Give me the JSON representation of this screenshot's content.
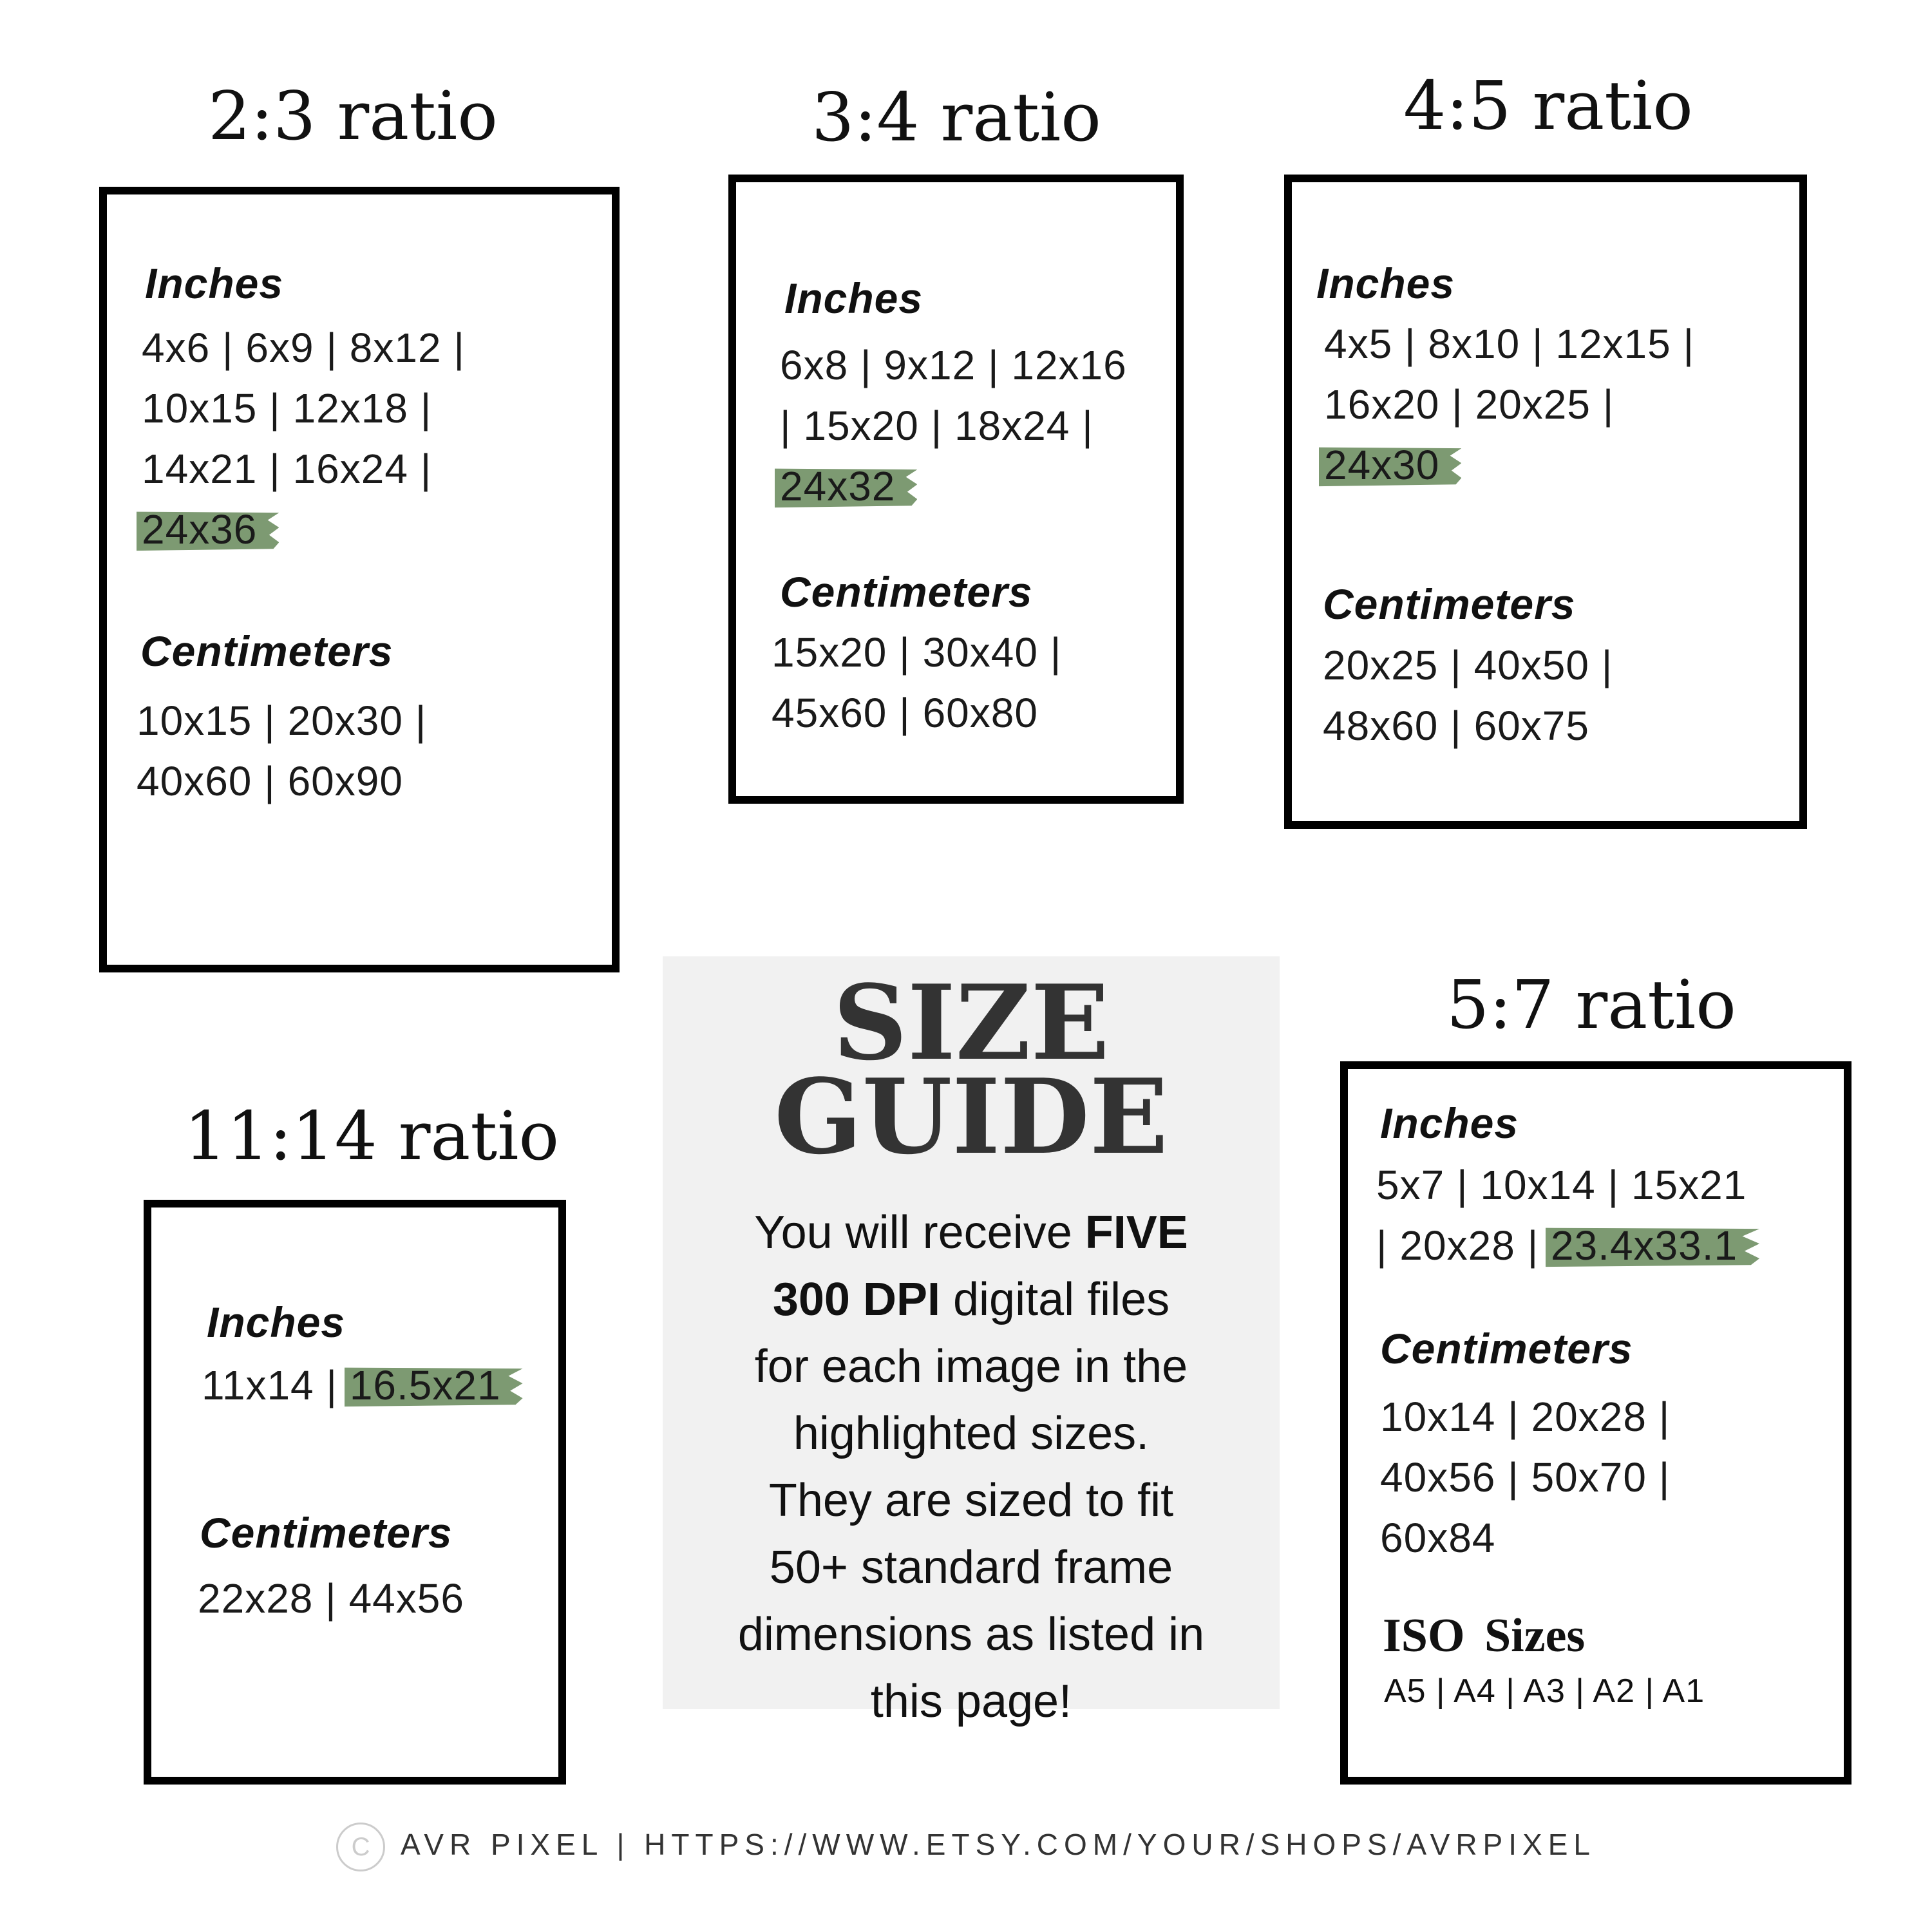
{
  "colors": {
    "highlight": "#7d9a72",
    "border": "#000000",
    "paper": "#f1f1f1"
  },
  "ratios": [
    {
      "id": "2-3",
      "title": "2:3 ratio",
      "inches_label": "Inches",
      "inches": [
        {
          "text": "4x6 | 6x9 | 8x12 |"
        },
        {
          "text": "10x15 | 12x18 |"
        },
        {
          "text": "14x21 | 16x24 |"
        },
        {
          "text": "",
          "highlight": "24x36"
        }
      ],
      "cm_label": "Centimeters",
      "cm": [
        "10x15 | 20x30 |",
        "40x60 | 60x90"
      ]
    },
    {
      "id": "3-4",
      "title": "3:4 ratio",
      "inches_label": "Inches",
      "inches": [
        {
          "text": "6x8 | 9x12 | 12x16"
        },
        {
          "text": "| 15x20 | 18x24 |"
        },
        {
          "text": "",
          "highlight": "24x32"
        }
      ],
      "cm_label": "Centimeters",
      "cm": [
        "15x20 |  30x40 |",
        "45x60 | 60x80"
      ]
    },
    {
      "id": "4-5",
      "title": "4:5 ratio",
      "inches_label": "Inches",
      "inches": [
        {
          "text": "4x5  |  8x10 | 12x15 |"
        },
        {
          "text": "16x20 | 20x25 |"
        },
        {
          "text": "",
          "highlight": "24x30"
        }
      ],
      "cm_label": "Centimeters",
      "cm": [
        "20x25 | 40x50 |",
        "48x60 | 60x75"
      ]
    },
    {
      "id": "11-14",
      "title": "11:14 ratio",
      "inches_label": "Inches",
      "inches": [
        {
          "text": "11x14 | ",
          "highlight": "16.5x21"
        }
      ],
      "cm_label": "Centimeters",
      "cm": [
        "22x28 | 44x56"
      ]
    },
    {
      "id": "5-7",
      "title": "5:7 ratio",
      "inches_label": "Inches",
      "inches": [
        {
          "text": "5x7  |  10x14 | 15x21"
        },
        {
          "text": "| 20x28 | ",
          "highlight": "23.4x33.1"
        }
      ],
      "cm_label": "Centimeters",
      "cm": [
        "10x14 | 20x28 |",
        "40x56 | 50x70 |",
        "60x84"
      ],
      "iso_label": "ISO  Sizes",
      "iso": "A5 | A4 | A3 | A2 | A1"
    }
  ],
  "guide": {
    "title_line1": "SIZE",
    "title_line2": "GUIDE",
    "p1": "You will receive ",
    "p1_bold": "FIVE",
    "p2_bold": "300 DPI",
    "p2": " digital files",
    "p3": "for each image in the",
    "p4": "highlighted sizes.",
    "p5": "They are sized to fit",
    "p6": "50+ standard frame",
    "p7": "dimensions as listed in",
    "p8": "this page!"
  },
  "footer": {
    "copyright_icon": "copyright-icon",
    "symbol": "C",
    "text": "AVR PIXEL | HTTPS://WWW.ETSY.COM/YOUR/SHOPS/AVRPIXEL"
  }
}
